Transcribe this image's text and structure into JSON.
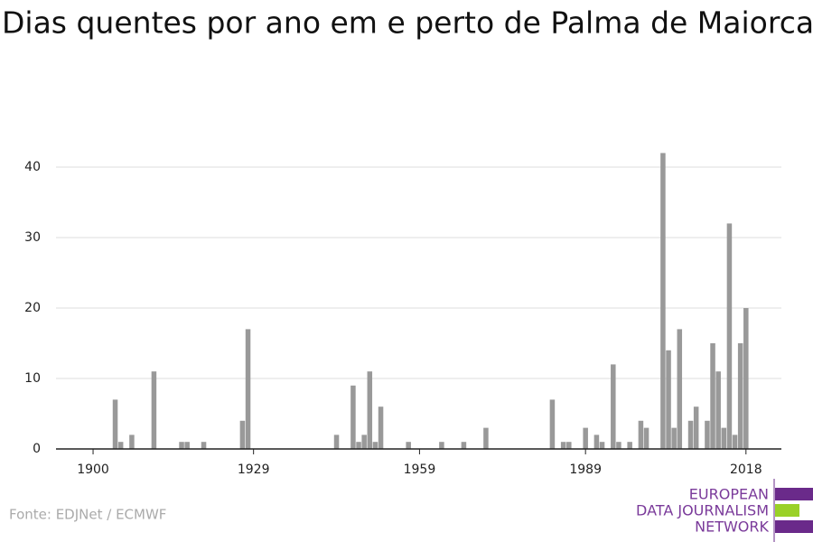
{
  "chart_data": {
    "type": "bar",
    "title": "Dias quentes por ano em e perto de Palma de Maiorca",
    "source": "Fonte: EDJNet / ECMWF",
    "logo": [
      "EUROPEAN",
      "DATA JOURNALISM",
      "NETWORK"
    ],
    "color": "#999999",
    "x": [
      1900,
      1901,
      1902,
      1903,
      1904,
      1905,
      1906,
      1907,
      1908,
      1909,
      1910,
      1911,
      1912,
      1913,
      1914,
      1915,
      1916,
      1917,
      1918,
      1919,
      1920,
      1921,
      1922,
      1923,
      1924,
      1925,
      1926,
      1927,
      1928,
      1929,
      1930,
      1931,
      1932,
      1933,
      1934,
      1935,
      1936,
      1937,
      1938,
      1939,
      1940,
      1941,
      1942,
      1943,
      1944,
      1945,
      1946,
      1947,
      1948,
      1949,
      1950,
      1951,
      1952,
      1953,
      1954,
      1955,
      1956,
      1957,
      1958,
      1959,
      1960,
      1961,
      1962,
      1963,
      1964,
      1965,
      1966,
      1967,
      1968,
      1969,
      1970,
      1971,
      1972,
      1973,
      1974,
      1975,
      1976,
      1977,
      1978,
      1979,
      1980,
      1981,
      1982,
      1983,
      1984,
      1985,
      1986,
      1987,
      1988,
      1989,
      1990,
      1991,
      1992,
      1993,
      1994,
      1995,
      1996,
      1997,
      1998,
      1999,
      2000,
      2001,
      2002,
      2003,
      2004,
      2005,
      2006,
      2007,
      2008,
      2009,
      2010,
      2011,
      2012,
      2013,
      2014,
      2015,
      2016,
      2017,
      2018
    ],
    "values": [
      0,
      0,
      0,
      0,
      7,
      1,
      0,
      2,
      0,
      0,
      0,
      11,
      0,
      0,
      0,
      0,
      1,
      1,
      0,
      0,
      1,
      0,
      0,
      0,
      0,
      0,
      0,
      4,
      17,
      0,
      0,
      0,
      0,
      0,
      0,
      0,
      0,
      0,
      0,
      0,
      0,
      0,
      0,
      0,
      2,
      0,
      0,
      9,
      1,
      2,
      11,
      1,
      6,
      0,
      0,
      0,
      0,
      1,
      0,
      0,
      0,
      0,
      0,
      1,
      0,
      0,
      0,
      1,
      0,
      0,
      0,
      3,
      0,
      0,
      0,
      0,
      0,
      0,
      0,
      0,
      0,
      0,
      0,
      7,
      0,
      1,
      1,
      0,
      0,
      3,
      0,
      2,
      1,
      0,
      12,
      1,
      0,
      1,
      0,
      4,
      3,
      0,
      0,
      42,
      14,
      3,
      17,
      0,
      4,
      6,
      0,
      4,
      15,
      11,
      3,
      32,
      2,
      15,
      20
    ],
    "xlim": [
      1893.3,
      2024.4
    ],
    "xticks": [
      1900,
      1929,
      1959,
      1989,
      2018
    ],
    "ylim": [
      0,
      40
    ],
    "yticks": [
      0,
      10,
      20,
      30,
      40
    ],
    "grid": true
  }
}
